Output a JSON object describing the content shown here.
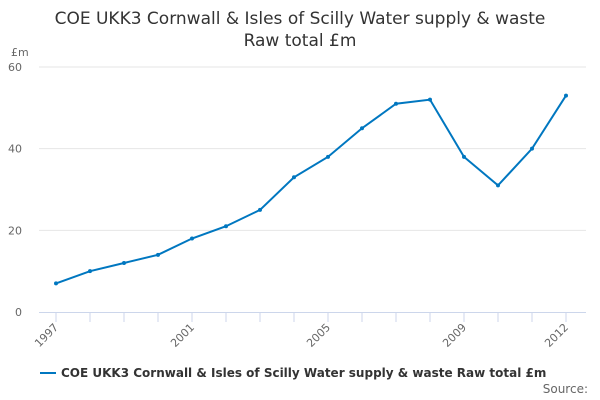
{
  "chart_data": {
    "type": "line",
    "title_line1": "COE UKK3 Cornwall & Isles of Scilly Water supply & waste",
    "title_line2": "Raw total £m",
    "ylabel": "£m",
    "ylim": [
      0,
      60
    ],
    "yticks": [
      0,
      20,
      40,
      60
    ],
    "x": [
      1997,
      1998,
      1999,
      2000,
      2001,
      2002,
      2003,
      2004,
      2005,
      2006,
      2007,
      2008,
      2009,
      2010,
      2011,
      2012
    ],
    "xtick_labels": [
      "1997",
      "2001",
      "2005",
      "2009",
      "2012"
    ],
    "series": [
      {
        "name": "COE UKK3 Cornwall & Isles of Scilly Water supply & waste Raw total £m",
        "color": "#0077c0",
        "values": [
          7,
          10,
          12,
          14,
          18,
          21,
          25,
          33,
          38,
          45,
          51,
          52,
          38,
          31,
          40,
          53
        ]
      }
    ],
    "legend": "bottom",
    "source": "Source:"
  }
}
